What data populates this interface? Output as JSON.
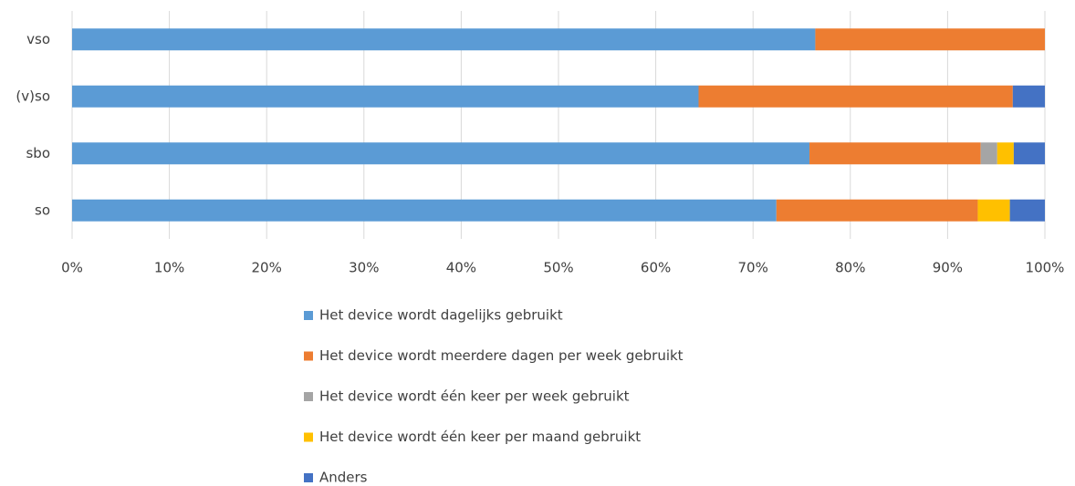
{
  "chart_data": {
    "type": "stacked_barh",
    "categories": [
      "vso",
      "(v)so",
      "sbo",
      "so"
    ],
    "series": [
      {
        "name": "Het device wordt dagelijks gebruikt",
        "color": "#5b9bd5",
        "values": [
          76.4,
          64.4,
          75.8,
          72.4
        ]
      },
      {
        "name": "Het device wordt meerdere dagen per week gebruikt",
        "color": "#ed7d31",
        "values": [
          23.6,
          32.3,
          17.6,
          20.7
        ]
      },
      {
        "name": "Het device wordt één keer per week gebruikt",
        "color": "#a5a5a5",
        "values": [
          0,
          0,
          1.7,
          0
        ]
      },
      {
        "name": "Het device wordt één keer per maand gebruikt",
        "color": "#ffc000",
        "values": [
          0,
          0,
          1.7,
          3.3
        ]
      },
      {
        "name": "Anders",
        "color": "#4472c4",
        "values": [
          0,
          3.3,
          3.2,
          3.6
        ]
      }
    ],
    "xlim": [
      0,
      100
    ],
    "xticks": [
      {
        "value": 0,
        "label": "0%"
      },
      {
        "value": 10,
        "label": "10%"
      },
      {
        "value": 20,
        "label": "20%"
      },
      {
        "value": 30,
        "label": "30%"
      },
      {
        "value": 40,
        "label": "40%"
      },
      {
        "value": 50,
        "label": "50%"
      },
      {
        "value": 60,
        "label": "60%"
      },
      {
        "value": 70,
        "label": "70%"
      },
      {
        "value": 80,
        "label": "80%"
      },
      {
        "value": 90,
        "label": "90%"
      },
      {
        "value": 100,
        "label": "100%"
      }
    ],
    "grid": true,
    "legend": "bottom"
  }
}
